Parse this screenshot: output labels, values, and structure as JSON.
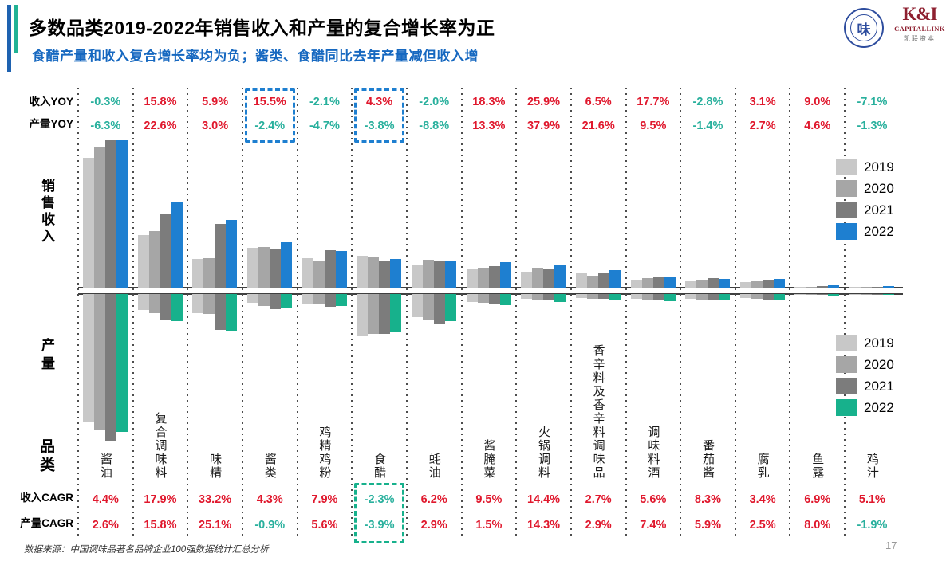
{
  "header": {
    "title": "多数品类2019-2022年销售收入和产量的复合增长率为正",
    "subtitle": "食醋产量和收入复合增长率均为负；酱类、食醋同比去年产量减但收入增"
  },
  "logos": {
    "association_char": "味",
    "capitallink_monogram": "K&I",
    "capitallink_en": "CAPITALLINK",
    "capitallink_cn": "凯联资本"
  },
  "row_labels": {
    "income_yoy": "收入YOY",
    "output_yoy": "产量YOY",
    "sales_revenue": "销售收入",
    "output": "产量",
    "category": "品类",
    "income_cagr": "收入CAGR",
    "output_cagr": "产量CAGR"
  },
  "colors": {
    "positive": "#e0182d",
    "negative": "#29b09d",
    "sales_years": [
      "#c8c8c8",
      "#a6a6a6",
      "#7c7c7c",
      "#1e7fd0"
    ],
    "output_years": [
      "#c8c8c8",
      "#a6a6a6",
      "#7c7c7c",
      "#17b18c"
    ],
    "highlight_blue": "#1e7fd0",
    "highlight_teal": "#17b18c",
    "subtitle_blue": "#1668c0"
  },
  "chart_data": {
    "type": "bar",
    "title": "销售收入与产量（上下对称条形图，无数值轴，高度为相对值）",
    "years": [
      "2019",
      "2020",
      "2021",
      "2022"
    ],
    "bar_unit": "relative height (no numeric axis shown in source)",
    "legend_position": "right",
    "categories": [
      {
        "name": "酱油",
        "income_yoy": "-0.3%",
        "output_yoy": "-6.3%",
        "income_cagr": "4.4%",
        "output_cagr": "2.6%",
        "sales": [
          163,
          177,
          185,
          185
        ],
        "output": [
          160,
          170,
          185,
          173
        ]
      },
      {
        "name": "复合调味料",
        "income_yoy": "15.8%",
        "output_yoy": "22.6%",
        "income_cagr": "17.9%",
        "output_cagr": "15.8%",
        "sales": [
          66,
          71,
          93,
          108
        ],
        "output": [
          20,
          24,
          32,
          34
        ]
      },
      {
        "name": "味精",
        "income_yoy": "5.9%",
        "output_yoy": "3.0%",
        "income_cagr": "33.2%",
        "output_cagr": "25.1%",
        "sales": [
          36,
          37,
          80,
          85
        ],
        "output": [
          24,
          25,
          45,
          46
        ]
      },
      {
        "name": "酱类",
        "income_yoy": "15.5%",
        "output_yoy": "-2.4%",
        "income_cagr": "4.3%",
        "output_cagr": "-0.9%",
        "sales": [
          50,
          51,
          49,
          57
        ],
        "output": [
          11,
          15,
          19,
          18
        ],
        "yoy_highlight": true
      },
      {
        "name": "鸡精鸡粉",
        "income_yoy": "-2.1%",
        "output_yoy": "-4.7%",
        "income_cagr": "7.9%",
        "output_cagr": "5.6%",
        "sales": [
          37,
          34,
          47,
          46
        ],
        "output": [
          12,
          13,
          16,
          15
        ]
      },
      {
        "name": "食醋",
        "income_yoy": "4.3%",
        "output_yoy": "-3.8%",
        "income_cagr": "-2.3%",
        "output_cagr": "-3.9%",
        "sales": [
          40,
          38,
          34,
          36
        ],
        "output": [
          53,
          50,
          50,
          48
        ],
        "yoy_highlight": true,
        "cagr_highlight": true
      },
      {
        "name": "蚝油",
        "income_yoy": "-2.0%",
        "output_yoy": "-8.8%",
        "income_cagr": "6.2%",
        "output_cagr": "2.9%",
        "sales": [
          29,
          35,
          34,
          33
        ],
        "output": [
          29,
          33,
          37,
          34
        ]
      },
      {
        "name": "酱腌菜",
        "income_yoy": "18.3%",
        "output_yoy": "13.3%",
        "income_cagr": "9.5%",
        "output_cagr": "1.5%",
        "sales": [
          24,
          25,
          27,
          32
        ],
        "output": [
          10,
          11,
          12,
          14
        ]
      },
      {
        "name": "火锅调料",
        "income_yoy": "25.9%",
        "output_yoy": "37.9%",
        "income_cagr": "14.4%",
        "output_cagr": "14.3%",
        "sales": [
          20,
          25,
          23,
          28
        ],
        "output": [
          6,
          7,
          7,
          10
        ]
      },
      {
        "name": "香辛料及香辛料调味品",
        "income_yoy": "6.5%",
        "output_yoy": "21.6%",
        "income_cagr": "2.7%",
        "output_cagr": "2.9%",
        "sales": [
          18,
          15,
          19,
          22
        ],
        "output": [
          5,
          6,
          6,
          8
        ]
      },
      {
        "name": "调味料酒",
        "income_yoy": "17.7%",
        "output_yoy": "9.5%",
        "income_cagr": "5.6%",
        "output_cagr": "7.4%",
        "sales": [
          10,
          12,
          13,
          13
        ],
        "output": [
          6,
          7,
          8,
          9
        ]
      },
      {
        "name": "番茄酱",
        "income_yoy": "-2.8%",
        "output_yoy": "-1.4%",
        "income_cagr": "8.3%",
        "output_cagr": "5.9%",
        "sales": [
          8,
          10,
          12,
          11
        ],
        "output": [
          6,
          7,
          8,
          8
        ]
      },
      {
        "name": "腐乳",
        "income_yoy": "3.1%",
        "output_yoy": "2.7%",
        "income_cagr": "3.4%",
        "output_cagr": "2.5%",
        "sales": [
          7,
          9,
          10,
          11
        ],
        "output": [
          5,
          6,
          7,
          7
        ]
      },
      {
        "name": "鱼露",
        "income_yoy": "9.0%",
        "output_yoy": "4.6%",
        "income_cagr": "6.9%",
        "output_cagr": "8.0%",
        "sales": [
          1,
          1,
          2,
          3
        ],
        "output": [
          1,
          1,
          1,
          2
        ]
      },
      {
        "name": "鸡汁",
        "income_yoy": "-7.1%",
        "output_yoy": "-1.3%",
        "income_cagr": "5.1%",
        "output_cagr": "-1.9%",
        "sales": [
          1,
          1,
          1,
          2
        ],
        "output": [
          1,
          1,
          1,
          1
        ]
      }
    ]
  },
  "footer": {
    "source": "数据来源：中国调味品著名品牌企业100强数据统计汇总分析",
    "page": "17"
  }
}
